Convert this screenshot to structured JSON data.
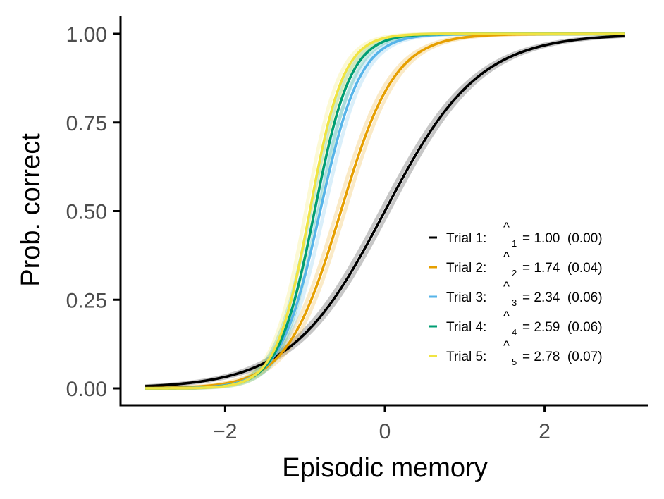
{
  "chart_data": {
    "type": "line",
    "xlabel": "Episodic memory",
    "ylabel": "Prob. correct",
    "xlim": [
      -3,
      3
    ],
    "ylim": [
      0,
      1
    ],
    "x_ticks": [
      -2,
      0,
      2
    ],
    "x_tick_labels": [
      "−2",
      "0",
      "2"
    ],
    "y_ticks": [
      0,
      0.25,
      0.5,
      0.75,
      1
    ],
    "y_tick_labels": [
      "0.00",
      "0.25",
      "0.50",
      "0.75",
      "1.00"
    ],
    "grid": false,
    "legend_position": "bottom-right",
    "curve_model": "logistic",
    "series": [
      {
        "name": "Trial 1:",
        "color": "#000000",
        "hat": "^",
        "subscript": "1",
        "value_text": "= 1.00  (0.00)",
        "slope": 1.0,
        "location": 0.0
      },
      {
        "name": "Trial 2:",
        "color": "#E69F00",
        "hat": "^",
        "subscript": "2",
        "value_text": "= 1.74  (0.04)",
        "slope": 1.74,
        "location": -0.55
      },
      {
        "name": "Trial 3:",
        "color": "#56B4E9",
        "hat": "^",
        "subscript": "3",
        "value_text": "= 2.34  (0.06)",
        "slope": 2.34,
        "location": -0.81
      },
      {
        "name": "Trial 4:",
        "color": "#009E73",
        "hat": "^",
        "subscript": "4",
        "value_text": "= 2.59  (0.06)",
        "slope": 2.59,
        "location": -0.88
      },
      {
        "name": "Trial 5:",
        "color": "#F0E442",
        "hat": "^",
        "subscript": "5",
        "value_text": "= 2.78  (0.07)",
        "slope": 2.78,
        "location": -0.94
      }
    ]
  }
}
